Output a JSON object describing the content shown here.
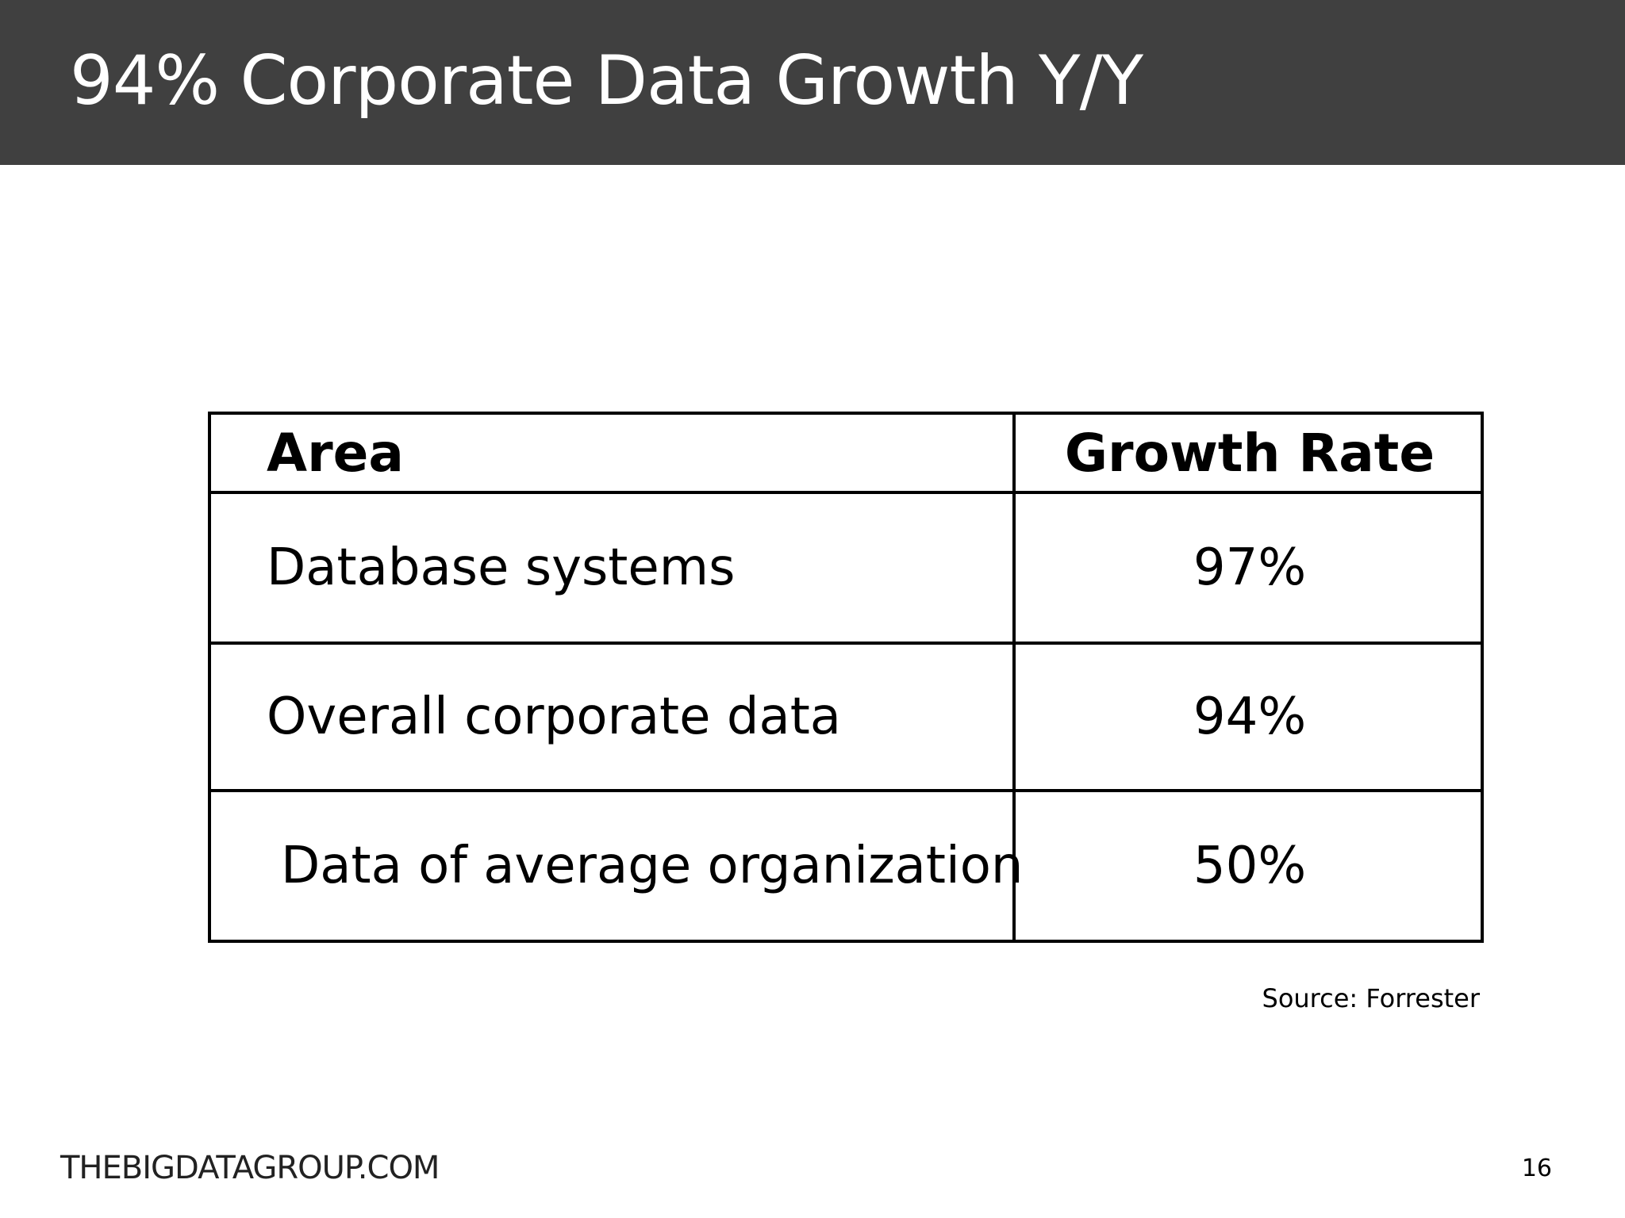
{
  "slide": {
    "title": "94% Corporate Data Growth Y/Y",
    "source": "Source: Forrester",
    "footer_brand": "THEBIGDATAGROUP.COM",
    "page_number": "16"
  },
  "table": {
    "headers": [
      "Area",
      "Growth Rate"
    ],
    "rows": [
      {
        "area": "Database systems",
        "growth_rate": "97%"
      },
      {
        "area": "Overall corporate data",
        "growth_rate": "94%"
      },
      {
        "area": "Data of average organization",
        "growth_rate": "50%"
      }
    ]
  },
  "colors": {
    "title_bar": "#404040",
    "title_text": "#ffffff",
    "table_border": "#000000",
    "background": "#ffffff"
  }
}
